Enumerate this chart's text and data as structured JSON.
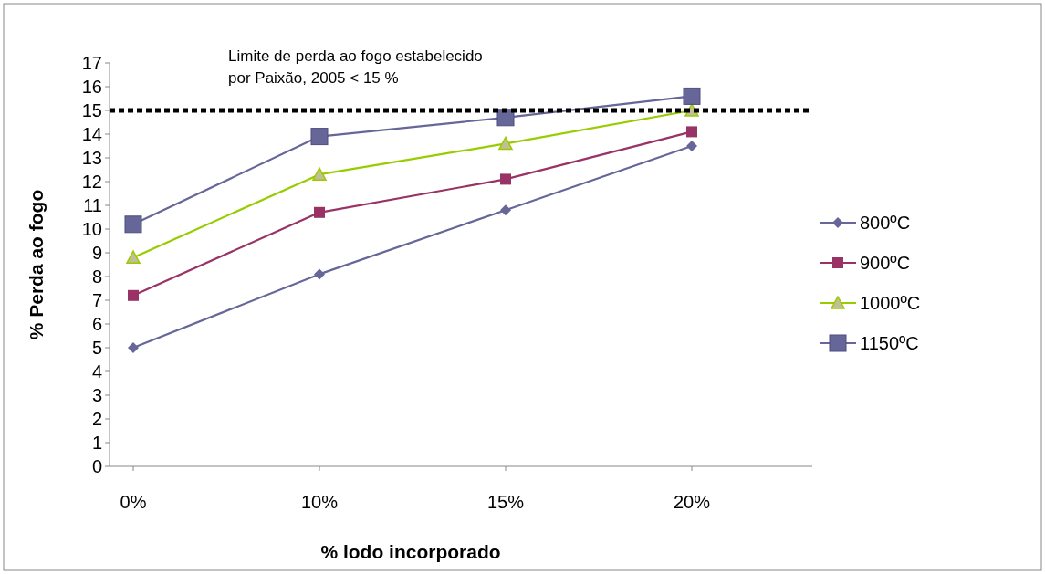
{
  "chart_data": {
    "type": "line",
    "xlabel": "% lodo incorporado",
    "ylabel": "% Perda ao fogo",
    "categories": [
      "0%",
      "10%",
      "15%",
      "20%"
    ],
    "series": [
      {
        "name": "800ºC",
        "color": "#666699",
        "marker": "diamond",
        "values": [
          5.0,
          8.1,
          10.8,
          13.5
        ]
      },
      {
        "name": "900ºC",
        "color": "#993366",
        "marker": "square",
        "values": [
          7.2,
          10.7,
          12.1,
          14.1
        ]
      },
      {
        "name": "1000ºC",
        "color": "#99cc00",
        "marker": "triangle",
        "values": [
          8.8,
          12.3,
          13.6,
          15.0
        ]
      },
      {
        "name": "1150ºC",
        "color": "#666699",
        "marker": "square",
        "values": [
          10.2,
          13.9,
          14.7,
          15.6
        ]
      }
    ],
    "ylim": [
      0,
      17
    ],
    "yticks": [
      0,
      1,
      2,
      3,
      4,
      5,
      6,
      7,
      8,
      9,
      10,
      11,
      12,
      13,
      14,
      15,
      16,
      17
    ],
    "grid": false,
    "legend": "right",
    "ref_lines": [
      {
        "axis": "y",
        "value": 15,
        "label": "Limite de perda ao fogo estabelecido\npor Paixão, 2005 < 15 %",
        "color": "#000000",
        "line_style": "dotted"
      }
    ]
  }
}
